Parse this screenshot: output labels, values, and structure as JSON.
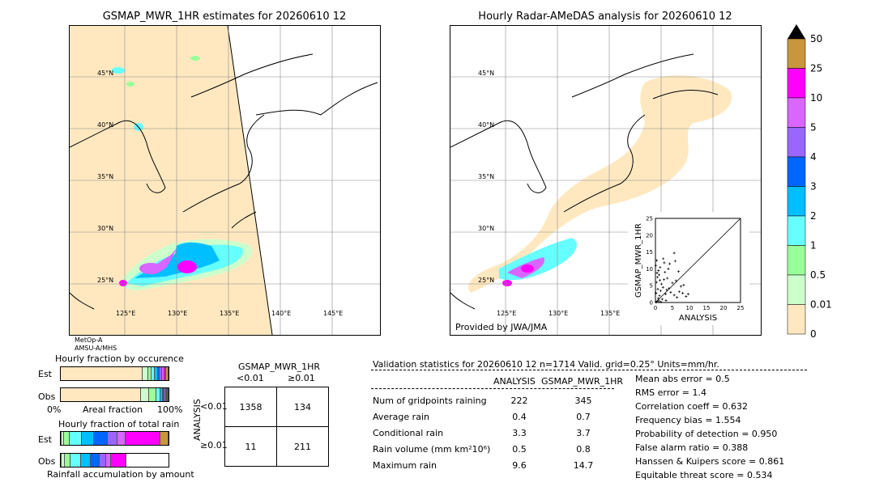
{
  "left_map": {
    "title": "GSMAP_MWR_1HR estimates for 20260610 12",
    "lat_labels": [
      "45°N",
      "40°N",
      "35°N",
      "30°N",
      "25°N"
    ],
    "lon_labels": [
      "125°E",
      "130°E",
      "135°E",
      "140°E",
      "145°E"
    ],
    "sensor_lines": [
      "MetOp-A",
      "AMSU-A/MHS"
    ]
  },
  "right_map": {
    "title": "Hourly Radar-AMeDAS analysis for 20260610 12",
    "lat_labels": [
      "45°N",
      "40°N",
      "35°N",
      "30°N",
      "25°N"
    ],
    "lon_labels": [
      "125°E",
      "130°E",
      "135°E"
    ],
    "credit": "Provided by JWA/JMA"
  },
  "colorbar": {
    "labels": [
      "50",
      "25",
      "10",
      "5",
      "4",
      "3",
      "2",
      "1",
      "0.5",
      "0.01",
      "0"
    ],
    "colors": [
      "#c8963c",
      "#ff00ff",
      "#d966ff",
      "#9966ff",
      "#0066ff",
      "#00bfff",
      "#66ffff",
      "#99ff99",
      "#ccffcc",
      "#ffe8c0"
    ],
    "over_color": "#000000"
  },
  "chart_data": [
    {
      "type": "scatter",
      "title": "",
      "xlabel": "ANALYSIS",
      "ylabel": "GSMAP_MWR_1HR",
      "xlim": [
        0,
        25
      ],
      "ylim": [
        0,
        25
      ],
      "xticks": [
        "0",
        "5",
        "10",
        "15",
        "20",
        "25"
      ],
      "yticks": [
        "0",
        "5",
        "10",
        "15",
        "20",
        "25"
      ],
      "points": [
        [
          0.2,
          0.1
        ],
        [
          0.5,
          0.3
        ],
        [
          0.8,
          1.2
        ],
        [
          1.0,
          0.5
        ],
        [
          1.2,
          2.0
        ],
        [
          1.5,
          3.5
        ],
        [
          2.0,
          1.0
        ],
        [
          2.2,
          4.5
        ],
        [
          0.3,
          6.0
        ],
        [
          0.6,
          7.5
        ],
        [
          1.1,
          8.2
        ],
        [
          1.8,
          5.5
        ],
        [
          2.5,
          6.8
        ],
        [
          3.0,
          2.5
        ],
        [
          3.3,
          3.8
        ],
        [
          0.9,
          9.5
        ],
        [
          1.4,
          10.5
        ],
        [
          2.8,
          9.0
        ],
        [
          3.5,
          7.2
        ],
        [
          4.0,
          4.2
        ],
        [
          4.5,
          3.0
        ],
        [
          5.0,
          5.8
        ],
        [
          5.5,
          2.2
        ],
        [
          6.0,
          6.5
        ],
        [
          6.3,
          1.5
        ],
        [
          7.0,
          3.2
        ],
        [
          7.5,
          4.8
        ],
        [
          8.0,
          2.8
        ],
        [
          8.3,
          5.2
        ],
        [
          9.0,
          1.8
        ],
        [
          9.6,
          2.5
        ],
        [
          3.8,
          10.0
        ],
        [
          4.2,
          11.5
        ],
        [
          5.5,
          14.7
        ],
        [
          0.1,
          11.0
        ],
        [
          0.4,
          12.5
        ],
        [
          2.3,
          13.0
        ],
        [
          1.6,
          0.2
        ],
        [
          0.2,
          2.8
        ],
        [
          0.7,
          4.0
        ],
        [
          3.1,
          0.6
        ],
        [
          2.6,
          11.8
        ],
        [
          5.8,
          12.3
        ],
        [
          6.8,
          9.2
        ],
        [
          1.3,
          6.6
        ],
        [
          0.5,
          8.8
        ]
      ]
    },
    {
      "type": "bar",
      "title": "Hourly fraction by occurence",
      "categories": [
        "Est",
        "Obs"
      ],
      "xticks": [
        "0%",
        "Areal fraction",
        "100%"
      ],
      "series": [
        {
          "values": [
            0.76,
            0.75
          ]
        },
        {
          "values": [
            0.05,
            0.07
          ]
        },
        {
          "values": [
            0.03,
            0.07
          ]
        },
        {
          "values": [
            0.03,
            0.04
          ]
        },
        {
          "values": [
            0.03,
            0.02
          ]
        },
        {
          "values": [
            0.02,
            0.02
          ]
        },
        {
          "values": [
            0.02,
            0.01
          ]
        },
        {
          "values": [
            0.02,
            0.01
          ]
        },
        {
          "values": [
            0.02,
            0.005
          ]
        },
        {
          "values": [
            0.02,
            0.005
          ]
        }
      ]
    },
    {
      "type": "bar",
      "title": "Hourly fraction of total rain",
      "categories": [
        "Est",
        "Obs"
      ],
      "xlabel": "Rainfall accumulation by amount",
      "series": [
        {
          "values": [
            0.01,
            0.01
          ]
        },
        {
          "values": [
            0.02,
            0.03
          ]
        },
        {
          "values": [
            0.06,
            0.05
          ]
        },
        {
          "values": [
            0.12,
            0.1
          ]
        },
        {
          "values": [
            0.12,
            0.09
          ]
        },
        {
          "values": [
            0.14,
            0.08
          ]
        },
        {
          "values": [
            0.1,
            0.06
          ]
        },
        {
          "values": [
            0.08,
            0.05
          ]
        },
        {
          "values": [
            0.35,
            0.14
          ]
        },
        {
          "values": [
            0.08,
            0.0
          ]
        }
      ]
    }
  ],
  "contingency": {
    "title": "GSMAP_MWR_1HR",
    "col_labels": [
      "<0.01",
      "≥0.01"
    ],
    "row_labels": [
      "<0.01",
      "≥0.01"
    ],
    "side_label": "ANALYSIS",
    "cells": [
      [
        "1358",
        "134"
      ],
      [
        "11",
        "211"
      ]
    ]
  },
  "validation": {
    "header": "Validation statistics for 20260610 12  n=1714 Valid. grid=0.25° Units=mm/hr.",
    "col_headers": [
      "ANALYSIS",
      "GSMAP_MWR_1HR"
    ],
    "rows": [
      {
        "label": "Num of gridpoints raining",
        "a": "222",
        "b": "345"
      },
      {
        "label": "Average rain",
        "a": "0.4",
        "b": "0.7"
      },
      {
        "label": "Conditional rain",
        "a": "3.3",
        "b": "3.7"
      },
      {
        "label": "Rain volume (mm km²10⁶)",
        "a": "0.5",
        "b": "0.8"
      },
      {
        "label": "Maximum rain",
        "a": "9.6",
        "b": "14.7"
      }
    ],
    "scores": [
      "Mean abs error =    0.5",
      "RMS error =    1.4",
      "Correlation coeff =  0.632",
      "Frequency bias =  1.554",
      "Probability of detection =  0.950",
      "False alarm ratio =  0.388",
      "Hanssen & Kuipers score =  0.861",
      "Equitable threat score =  0.534"
    ]
  }
}
